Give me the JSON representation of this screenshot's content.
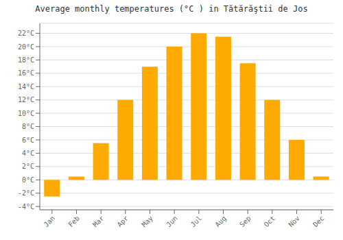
{
  "chart_data": {
    "type": "bar",
    "title": "Average monthly temperatures (°C ) in Tătărăştii de Jos",
    "categories": [
      "Jan",
      "Feb",
      "Mar",
      "Apr",
      "May",
      "Jun",
      "Jul",
      "Aug",
      "Sep",
      "Oct",
      "Nov",
      "Dec"
    ],
    "values": [
      -2.5,
      0.5,
      5.5,
      12.0,
      17.0,
      20.0,
      22.0,
      21.5,
      17.5,
      12.0,
      6.0,
      0.5
    ],
    "color": "#FFAA00",
    "ylim": [
      -4.5,
      23.5
    ],
    "yticks": [
      {
        "value": -4,
        "label": "-4°C"
      },
      {
        "value": -2,
        "label": "-2°C"
      },
      {
        "value": 0,
        "label": "0°C"
      },
      {
        "value": 2,
        "label": "2°C"
      },
      {
        "value": 4,
        "label": "4°C"
      },
      {
        "value": 6,
        "label": "6°C"
      },
      {
        "value": 8,
        "label": "8°C"
      },
      {
        "value": 10,
        "label": "10°C"
      },
      {
        "value": 12,
        "label": "12°C"
      },
      {
        "value": 14,
        "label": "14°C"
      },
      {
        "value": 16,
        "label": "16°C"
      },
      {
        "value": 18,
        "label": "18°C"
      },
      {
        "value": 20,
        "label": "20°C"
      },
      {
        "value": 22,
        "label": "22°C"
      }
    ],
    "grid": true
  }
}
